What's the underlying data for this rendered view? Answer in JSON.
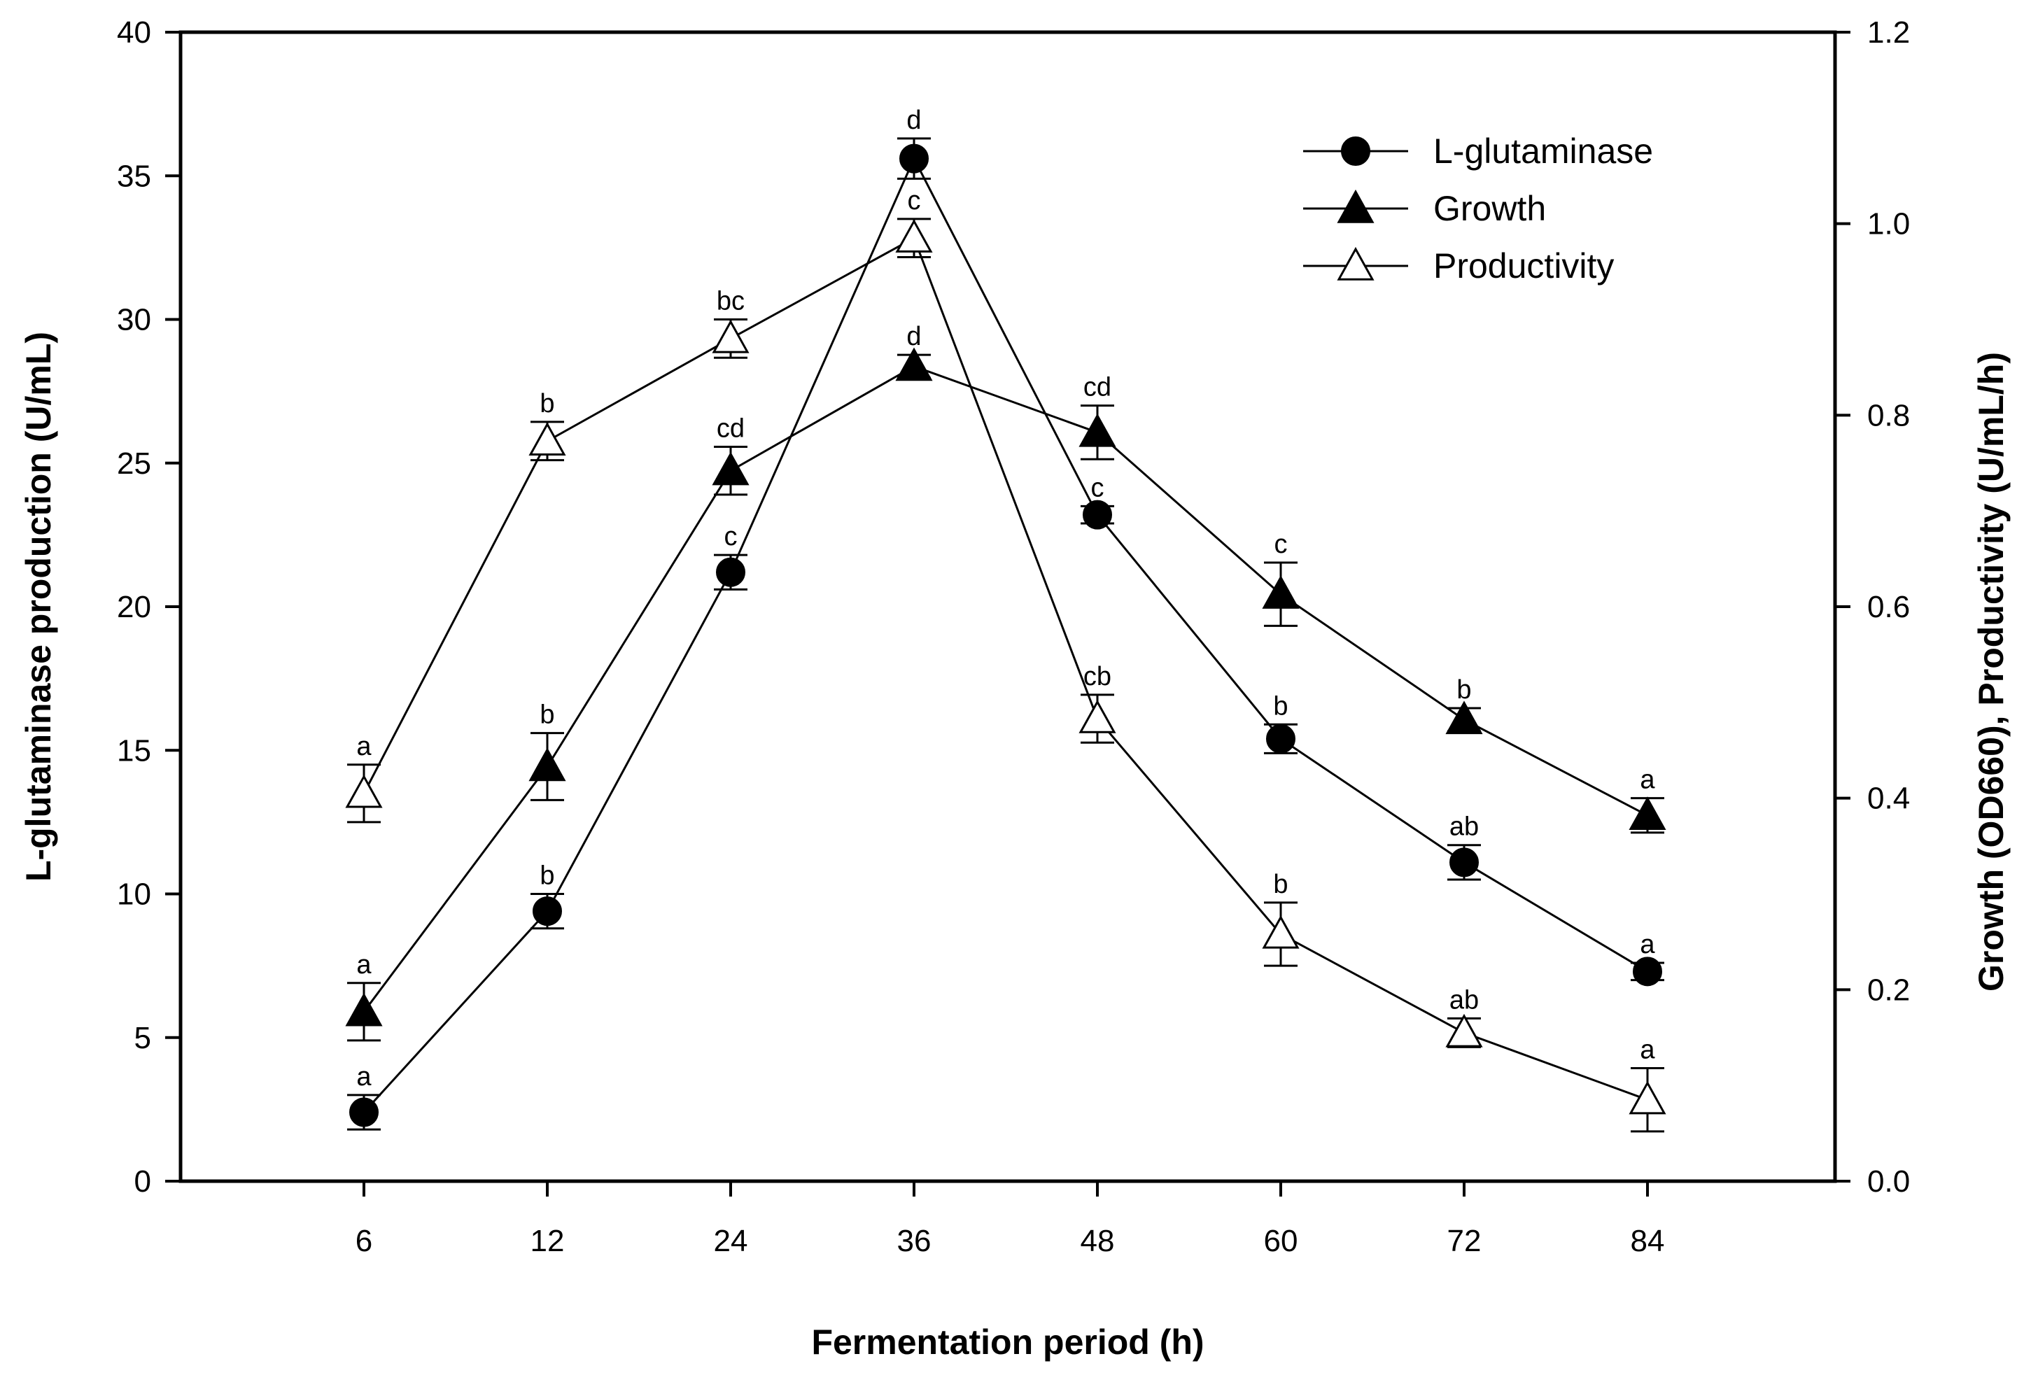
{
  "chart_data": {
    "type": "line",
    "title": "",
    "xlabel": "Fermentation period (h)",
    "ylabel_left": "L-glutaminase production (U/mL)",
    "ylabel_right": "Growth (OD660), Productivity (U/mL/h)",
    "categories": [
      "6",
      "12",
      "24",
      "36",
      "48",
      "60",
      "72",
      "84"
    ],
    "ylim_left": [
      0,
      40
    ],
    "yticks_left": [
      "0",
      "5",
      "10",
      "15",
      "20",
      "25",
      "30",
      "35",
      "40"
    ],
    "ylim_right": [
      0,
      1.2
    ],
    "yticks_right": [
      "0.0",
      "0.2",
      "0.4",
      "0.6",
      "0.8",
      "1.0",
      "1.2"
    ],
    "grid": false,
    "legend_position": "top-right",
    "series": [
      {
        "name": "L-glutaminase",
        "axis": "left",
        "marker": "filled-circle",
        "values": [
          2.4,
          9.4,
          21.2,
          35.6,
          23.2,
          15.4,
          11.1,
          7.3
        ],
        "errors": [
          0.6,
          0.6,
          0.6,
          0.7,
          0.3,
          0.5,
          0.6,
          0.3
        ],
        "labels": [
          "a",
          "b",
          "c",
          "d",
          "c",
          "b",
          "ab",
          "a"
        ]
      },
      {
        "name": "Growth",
        "axis": "right",
        "marker": "filled-triangle",
        "values": [
          0.177,
          0.433,
          0.742,
          0.851,
          0.782,
          0.613,
          0.482,
          0.382
        ],
        "errors": [
          0.03,
          0.035,
          0.025,
          0.012,
          0.028,
          0.033,
          0.012,
          0.018
        ],
        "labels": [
          "a",
          "b",
          "cd",
          "d",
          "cd",
          "c",
          "b",
          "a"
        ]
      },
      {
        "name": "Productivity",
        "axis": "right",
        "marker": "open-triangle",
        "values": [
          0.405,
          0.773,
          0.88,
          0.985,
          0.483,
          0.258,
          0.155,
          0.085
        ],
        "errors": [
          0.03,
          0.02,
          0.02,
          0.02,
          0.025,
          0.033,
          0.015,
          0.033
        ],
        "labels": [
          "a",
          "b",
          "bc",
          "c",
          "cb",
          "b",
          "ab",
          "a"
        ]
      }
    ]
  }
}
